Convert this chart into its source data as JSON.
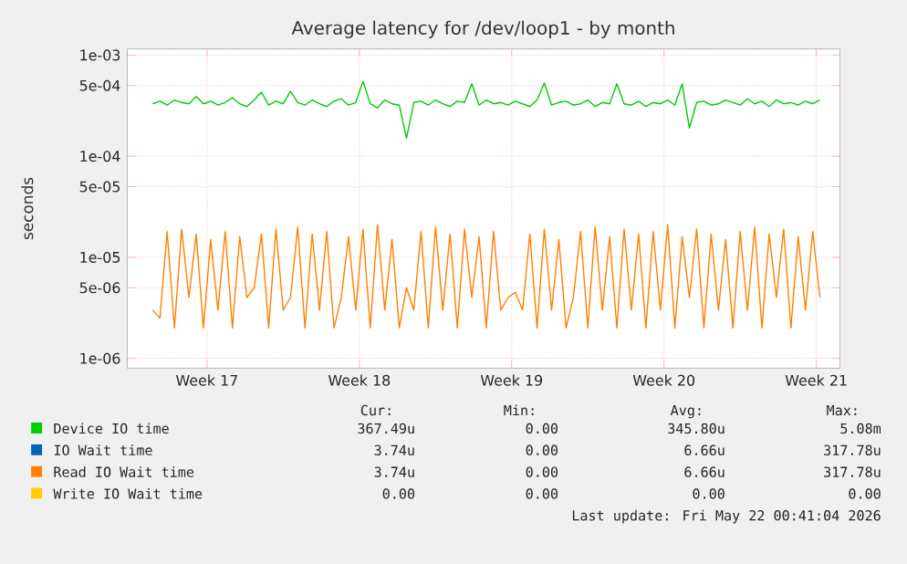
{
  "chart_data": {
    "type": "line",
    "title": "Average latency for /dev/loop1 - by month",
    "ylabel": "seconds",
    "log": "y",
    "grid": true,
    "legend": "bottom",
    "marker": "none",
    "line_style": "solid",
    "xlim": [
      "2026-04-19T20:00",
      "2026-05-22T14:00"
    ],
    "xticks": [
      {
        "value": "2026-04-23T12:00",
        "label": "Week 17"
      },
      {
        "value": "2026-04-30T12:00",
        "label": "Week 18"
      },
      {
        "value": "2026-05-07T12:00",
        "label": "Week 19"
      },
      {
        "value": "2026-05-14T12:00",
        "label": "Week 20"
      },
      {
        "value": "2026-05-21T12:00",
        "label": "Week 21"
      }
    ],
    "ylim": [
      8e-07,
      0.00115
    ],
    "yticks": [
      {
        "value": 1e-06,
        "label": "1e-06"
      },
      {
        "value": 5e-06,
        "label": "5e-06"
      },
      {
        "value": 1e-05,
        "label": "1e-05"
      },
      {
        "value": 5e-05,
        "label": "5e-05"
      },
      {
        "value": 0.0001,
        "label": "1e-04"
      },
      {
        "value": 0.0005,
        "label": "5e-04"
      },
      {
        "value": 0.001,
        "label": "1e-03"
      }
    ],
    "x": [
      "2026-04-21T00:00",
      "2026-04-21T08:00",
      "2026-04-21T16:00",
      "2026-04-22T00:00",
      "2026-04-22T08:00",
      "2026-04-22T16:00",
      "2026-04-23T00:00",
      "2026-04-23T08:00",
      "2026-04-23T16:00",
      "2026-04-24T00:00",
      "2026-04-24T08:00",
      "2026-04-24T16:00",
      "2026-04-25T00:00",
      "2026-04-25T08:00",
      "2026-04-25T16:00",
      "2026-04-26T00:00",
      "2026-04-26T08:00",
      "2026-04-26T16:00",
      "2026-04-27T00:00",
      "2026-04-27T08:00",
      "2026-04-27T16:00",
      "2026-04-28T00:00",
      "2026-04-28T08:00",
      "2026-04-28T16:00",
      "2026-04-29T00:00",
      "2026-04-29T08:00",
      "2026-04-29T16:00",
      "2026-04-30T00:00",
      "2026-04-30T08:00",
      "2026-04-30T16:00",
      "2026-05-01T00:00",
      "2026-05-01T08:00",
      "2026-05-01T16:00",
      "2026-05-02T00:00",
      "2026-05-02T08:00",
      "2026-05-02T16:00",
      "2026-05-03T00:00",
      "2026-05-03T08:00",
      "2026-05-03T16:00",
      "2026-05-04T00:00",
      "2026-05-04T08:00",
      "2026-05-04T16:00",
      "2026-05-05T00:00",
      "2026-05-05T08:00",
      "2026-05-05T16:00",
      "2026-05-06T00:00",
      "2026-05-06T08:00",
      "2026-05-06T16:00",
      "2026-05-07T00:00",
      "2026-05-07T08:00",
      "2026-05-07T16:00",
      "2026-05-08T00:00",
      "2026-05-08T08:00",
      "2026-05-08T16:00",
      "2026-05-09T00:00",
      "2026-05-09T08:00",
      "2026-05-09T16:00",
      "2026-05-10T00:00",
      "2026-05-10T08:00",
      "2026-05-10T16:00",
      "2026-05-11T00:00",
      "2026-05-11T08:00",
      "2026-05-11T16:00",
      "2026-05-12T00:00",
      "2026-05-12T08:00",
      "2026-05-12T16:00",
      "2026-05-13T00:00",
      "2026-05-13T08:00",
      "2026-05-13T16:00",
      "2026-05-14T00:00",
      "2026-05-14T08:00",
      "2026-05-14T16:00",
      "2026-05-15T00:00",
      "2026-05-15T08:00",
      "2026-05-15T16:00",
      "2026-05-16T00:00",
      "2026-05-16T08:00",
      "2026-05-16T16:00",
      "2026-05-17T00:00",
      "2026-05-17T08:00",
      "2026-05-17T16:00",
      "2026-05-18T00:00",
      "2026-05-18T08:00",
      "2026-05-18T16:00",
      "2026-05-19T00:00",
      "2026-05-19T08:00",
      "2026-05-19T16:00",
      "2026-05-20T00:00",
      "2026-05-20T08:00",
      "2026-05-20T16:00",
      "2026-05-21T00:00",
      "2026-05-21T08:00",
      "2026-05-21T16:00"
    ],
    "series": [
      {
        "name": "Device IO time",
        "color": "#00cc00",
        "values": [
          0.00033,
          0.00035,
          0.00032,
          0.00036,
          0.00034,
          0.00033,
          0.00039,
          0.00033,
          0.00035,
          0.00032,
          0.00034,
          0.00038,
          0.00033,
          0.00031,
          0.00036,
          0.00043,
          0.00032,
          0.00035,
          0.00033,
          0.00044,
          0.00034,
          0.00032,
          0.00036,
          0.00033,
          0.00031,
          0.00035,
          0.00037,
          0.00032,
          0.00034,
          0.00055,
          0.00033,
          0.0003,
          0.00036,
          0.00033,
          0.00032,
          0.00015,
          0.00034,
          0.00035,
          0.00032,
          0.00036,
          0.00033,
          0.00031,
          0.00035,
          0.00034,
          0.00052,
          0.00032,
          0.00036,
          0.00033,
          0.00034,
          0.00032,
          0.00035,
          0.00033,
          0.00031,
          0.00036,
          0.00053,
          0.00032,
          0.00034,
          0.00035,
          0.00032,
          0.00033,
          0.00036,
          0.00031,
          0.00034,
          0.00033,
          0.00052,
          0.00033,
          0.00032,
          0.00035,
          0.00031,
          0.00034,
          0.00033,
          0.00036,
          0.00032,
          0.00052,
          0.00019,
          0.00034,
          0.00035,
          0.00032,
          0.00033,
          0.00036,
          0.00034,
          0.00032,
          0.00037,
          0.00033,
          0.00035,
          0.00031,
          0.00036,
          0.00033,
          0.00034,
          0.00032,
          0.00035,
          0.00033,
          0.00036
        ]
      },
      {
        "name": "IO Wait time",
        "color": "#0066b3",
        "values": [
          null,
          null,
          null,
          null,
          null,
          null,
          null,
          null,
          null,
          null,
          null,
          null,
          null,
          null,
          null,
          null,
          null,
          null,
          null,
          null,
          null,
          null,
          null,
          null,
          null,
          null,
          null,
          null,
          null,
          null,
          null,
          null,
          null,
          null,
          null,
          null,
          null,
          null,
          null,
          null,
          null,
          null,
          null,
          null,
          null,
          null,
          null,
          null,
          null,
          null,
          null,
          null,
          null,
          null,
          null,
          null,
          null,
          null,
          null,
          null,
          null,
          null,
          null,
          null,
          null,
          null,
          null,
          null,
          null,
          null,
          null,
          null,
          null,
          null,
          null,
          null,
          null,
          null,
          null,
          null,
          null,
          null,
          null,
          null,
          null,
          null,
          null,
          null,
          null,
          null,
          null,
          null,
          null
        ]
      },
      {
        "name": "Read IO Wait time",
        "color": "#ff8000",
        "values": [
          3e-06,
          2.5e-06,
          1.8e-05,
          2e-06,
          1.9e-05,
          4e-06,
          1.7e-05,
          2e-06,
          1.5e-05,
          3e-06,
          1.8e-05,
          2e-06,
          1.6e-05,
          4e-06,
          5e-06,
          1.7e-05,
          2e-06,
          1.9e-05,
          3e-06,
          4e-06,
          2e-05,
          2e-06,
          1.7e-05,
          3e-06,
          1.8e-05,
          2e-06,
          4e-06,
          1.6e-05,
          3e-06,
          1.9e-05,
          2e-06,
          2.1e-05,
          3e-06,
          1.5e-05,
          2e-06,
          5e-06,
          3e-06,
          1.8e-05,
          2e-06,
          2e-05,
          3e-06,
          1.7e-05,
          2e-06,
          1.9e-05,
          4e-06,
          1.6e-05,
          2e-06,
          1.8e-05,
          3e-06,
          4e-06,
          4.5e-06,
          3e-06,
          1.7e-05,
          2e-06,
          1.9e-05,
          3e-06,
          1.5e-05,
          2e-06,
          4e-06,
          1.8e-05,
          2e-06,
          2e-05,
          3e-06,
          1.6e-05,
          2e-06,
          1.9e-05,
          3e-06,
          1.7e-05,
          2e-06,
          1.8e-05,
          3e-06,
          2.1e-05,
          2e-06,
          1.6e-05,
          4e-06,
          1.9e-05,
          2e-06,
          1.7e-05,
          3e-06,
          1.5e-05,
          2e-06,
          1.8e-05,
          3e-06,
          2e-05,
          2e-06,
          1.7e-05,
          4e-06,
          1.9e-05,
          2e-06,
          1.6e-05,
          3e-06,
          1.8e-05,
          4e-06
        ]
      },
      {
        "name": "Write IO Wait time",
        "color": "#ffcc00",
        "values": [
          null,
          null,
          null,
          null,
          null,
          null,
          null,
          null,
          null,
          null,
          null,
          null,
          null,
          null,
          null,
          null,
          null,
          null,
          null,
          null,
          null,
          null,
          null,
          null,
          null,
          null,
          null,
          null,
          null,
          null,
          null,
          null,
          null,
          null,
          null,
          null,
          null,
          null,
          null,
          null,
          null,
          null,
          null,
          null,
          null,
          null,
          null,
          null,
          null,
          null,
          null,
          null,
          null,
          null,
          null,
          null,
          null,
          null,
          null,
          null,
          null,
          null,
          null,
          null,
          null,
          null,
          null,
          null,
          null,
          null,
          null,
          null,
          null,
          null,
          null,
          null,
          null,
          null,
          null,
          null,
          null,
          null,
          null,
          null,
          null,
          null,
          null,
          null,
          null,
          null,
          null,
          null,
          null
        ]
      }
    ],
    "annotations": [
      "Cur:",
      "Min:",
      "Avg:",
      "Max:",
      "367.49u",
      "0.00",
      "345.80u",
      "5.08m",
      "3.74u",
      "0.00",
      "6.66u",
      "317.78u",
      "3.74u",
      "0.00",
      "6.66u",
      "317.78u",
      "0.00",
      "0.00",
      "0.00",
      "0.00",
      "Last update: Fri May 22 00:41:04 2026"
    ]
  }
}
